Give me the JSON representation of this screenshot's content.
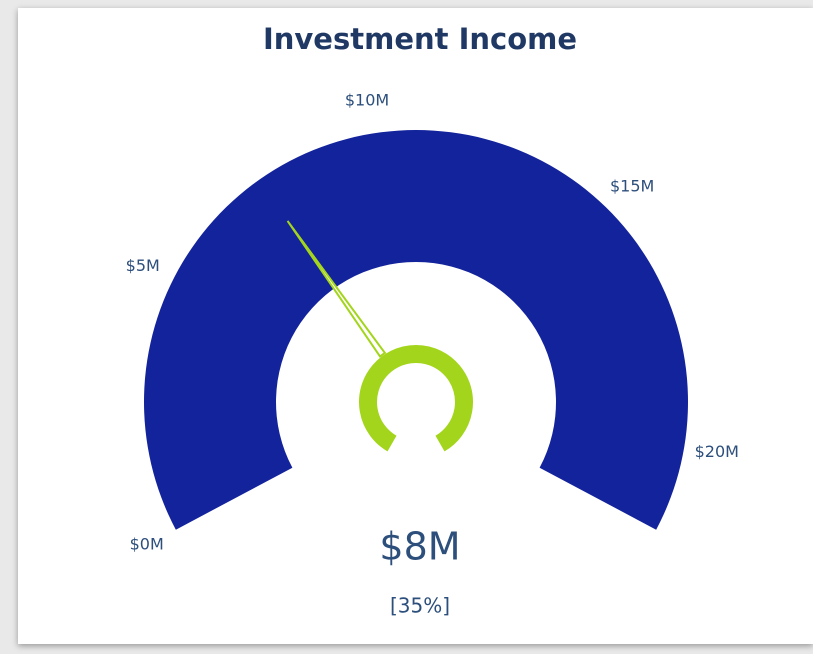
{
  "chart_data": {
    "type": "gauge",
    "title": "Investment Income",
    "value": 7.6,
    "value_label": "$8M",
    "percent_label": "[35%]",
    "ylim": [
      0,
      21.7
    ],
    "yticks": [
      {
        "value": 0,
        "label": "$0M"
      },
      {
        "value": 5,
        "label": "$5M"
      },
      {
        "value": 10,
        "label": "$10M"
      },
      {
        "value": 15,
        "label": "$15M"
      },
      {
        "value": 20,
        "label": "$20M"
      }
    ],
    "color": "#13239b",
    "needle_color": "#a3d51c"
  }
}
